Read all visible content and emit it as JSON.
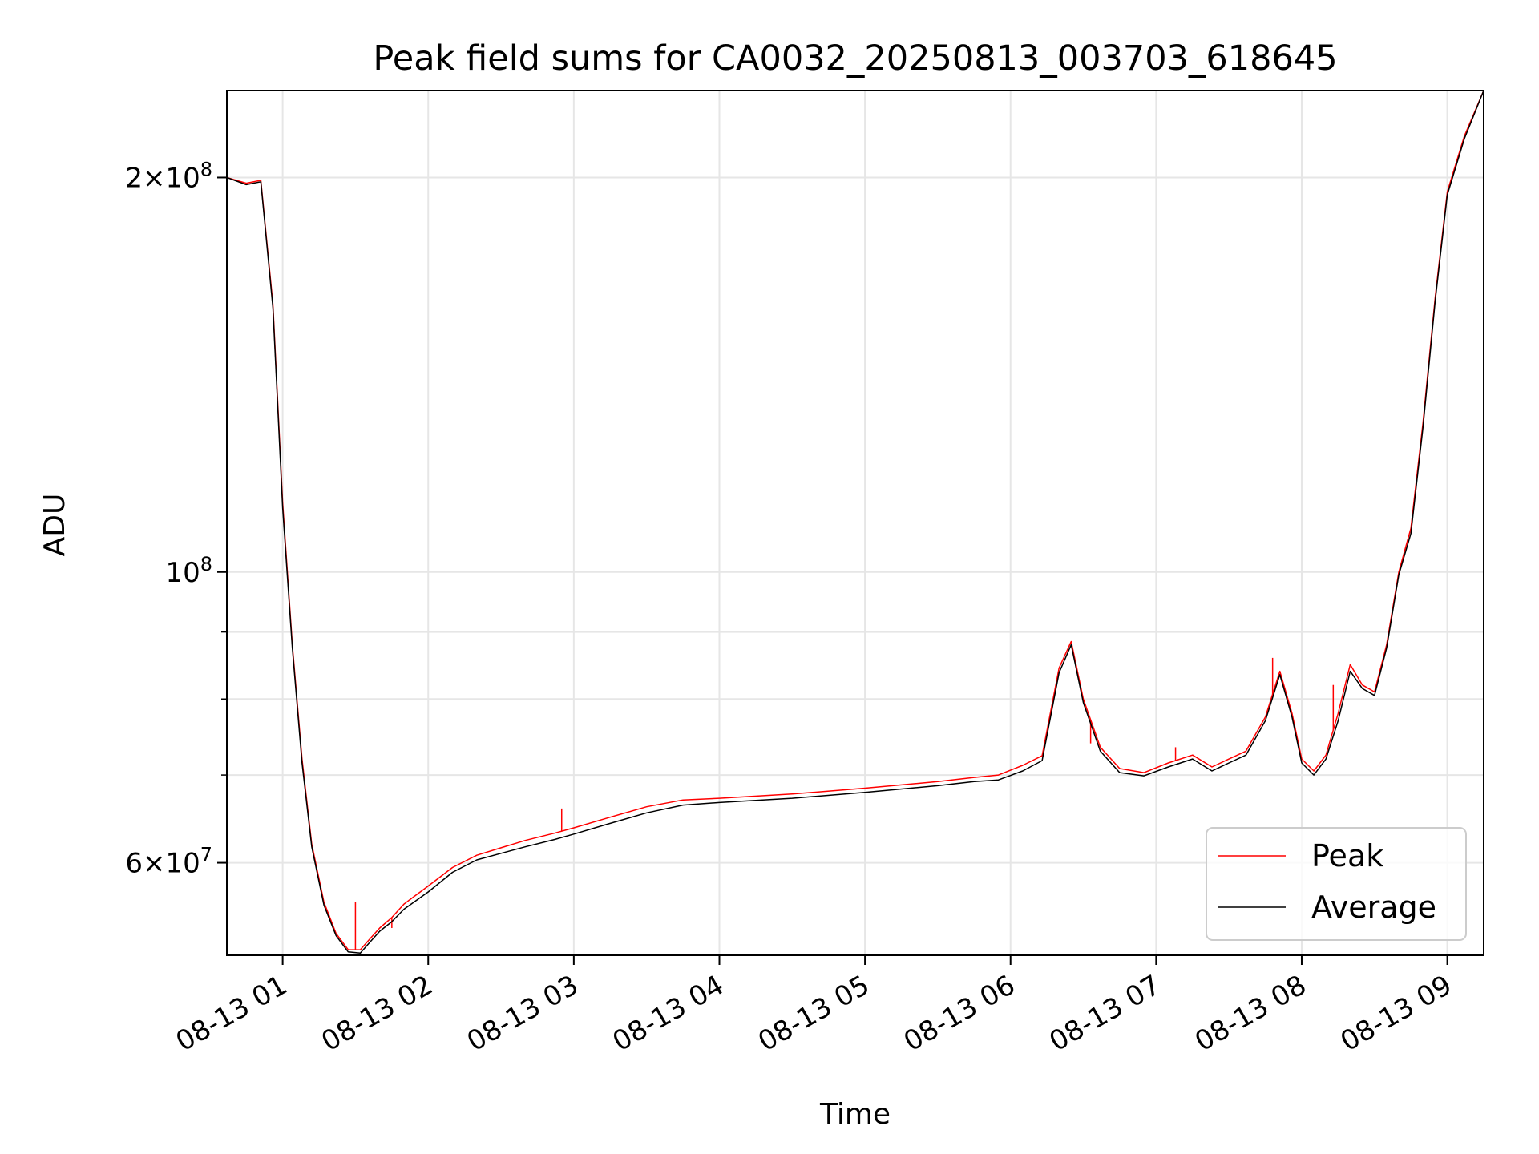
{
  "chart_data": {
    "type": "line",
    "title": "Peak field sums for CA0032_20250813_003703_618645",
    "xlabel": "Time",
    "ylabel": "ADU",
    "x_scale": "time",
    "y_scale": "log",
    "xlim": [
      "2025-08-13 00:37",
      "2025-08-13 09:15"
    ],
    "ylim": [
      51000000,
      233000000
    ],
    "x_tick_labels": [
      "08-13 01",
      "08-13 02",
      "08-13 03",
      "08-13 04",
      "08-13 05",
      "08-13 06",
      "08-13 07",
      "08-13 08",
      "08-13 09"
    ],
    "x_tick_values": [
      "2025-08-13 01:00",
      "2025-08-13 02:00",
      "2025-08-13 03:00",
      "2025-08-13 04:00",
      "2025-08-13 05:00",
      "2025-08-13 06:00",
      "2025-08-13 07:00",
      "2025-08-13 08:00",
      "2025-08-13 09:00"
    ],
    "y_ticks": [
      {
        "value": 60000000,
        "mantissa": "6",
        "exponent": "7"
      },
      {
        "value": 100000000,
        "mantissa": "",
        "exponent": "8"
      },
      {
        "value": 200000000,
        "mantissa": "2",
        "exponent": "8"
      }
    ],
    "y_minor_ticks": [
      70000000,
      80000000,
      90000000
    ],
    "grid": true,
    "legend_position": "lower-right",
    "series": [
      {
        "name": "Peak",
        "color": "#ff0000",
        "x": [
          "2025-08-13 00:37",
          "2025-08-13 00:45",
          "2025-08-13 00:51",
          "2025-08-13 00:56",
          "2025-08-13 01:00",
          "2025-08-13 01:04",
          "2025-08-13 01:08",
          "2025-08-13 01:12",
          "2025-08-13 01:17",
          "2025-08-13 01:22",
          "2025-08-13 01:27",
          "2025-08-13 01:32",
          "2025-08-13 01:36",
          "2025-08-13 01:40",
          "2025-08-13 01:45",
          "2025-08-13 01:50",
          "2025-08-13 02:00",
          "2025-08-13 02:10",
          "2025-08-13 02:20",
          "2025-08-13 02:30",
          "2025-08-13 02:40",
          "2025-08-13 02:52",
          "2025-08-13 03:00",
          "2025-08-13 03:15",
          "2025-08-13 03:30",
          "2025-08-13 03:45",
          "2025-08-13 04:00",
          "2025-08-13 04:30",
          "2025-08-13 05:00",
          "2025-08-13 05:30",
          "2025-08-13 05:45",
          "2025-08-13 05:55",
          "2025-08-13 06:05",
          "2025-08-13 06:13",
          "2025-08-13 06:20",
          "2025-08-13 06:25",
          "2025-08-13 06:30",
          "2025-08-13 06:37",
          "2025-08-13 06:45",
          "2025-08-13 06:55",
          "2025-08-13 07:05",
          "2025-08-13 07:15",
          "2025-08-13 07:23",
          "2025-08-13 07:30",
          "2025-08-13 07:37",
          "2025-08-13 07:45",
          "2025-08-13 07:51",
          "2025-08-13 07:56",
          "2025-08-13 08:00",
          "2025-08-13 08:05",
          "2025-08-13 08:10",
          "2025-08-13 08:15",
          "2025-08-13 08:20",
          "2025-08-13 08:25",
          "2025-08-13 08:30",
          "2025-08-13 08:35",
          "2025-08-13 08:40",
          "2025-08-13 08:45",
          "2025-08-13 08:50",
          "2025-08-13 08:55",
          "2025-08-13 09:00",
          "2025-08-13 09:07",
          "2025-08-13 09:15"
        ],
        "values": [
          200000000,
          198000000,
          199000000,
          160000000,
          113000000,
          88000000,
          72000000,
          62000000,
          56000000,
          53000000,
          51500000,
          51500000,
          52500000,
          53500000,
          54500000,
          55800000,
          57600000,
          59500000,
          60800000,
          61600000,
          62400000,
          63200000,
          63800000,
          65000000,
          66200000,
          67000000,
          67200000,
          67700000,
          68400000,
          69200000,
          69700000,
          70000000,
          71200000,
          72400000,
          84500000,
          88500000,
          80000000,
          73500000,
          70800000,
          70300000,
          71500000,
          72500000,
          71000000,
          72000000,
          73000000,
          77500000,
          84000000,
          78000000,
          72000000,
          70500000,
          72500000,
          78000000,
          85000000,
          82000000,
          81000000,
          88000000,
          100000000,
          108000000,
          130000000,
          162000000,
          195000000,
          215000000,
          233000000
        ],
        "spikes": [
          {
            "x": "2025-08-13 01:30",
            "value": 56000000
          },
          {
            "x": "2025-08-13 01:45",
            "value": 53500000
          },
          {
            "x": "2025-08-13 02:55",
            "value": 66000000
          },
          {
            "x": "2025-08-13 06:33",
            "value": 74000000
          },
          {
            "x": "2025-08-13 07:08",
            "value": 73500000
          },
          {
            "x": "2025-08-13 07:48",
            "value": 86000000
          },
          {
            "x": "2025-08-13 08:13",
            "value": 82000000
          }
        ]
      },
      {
        "name": "Average",
        "color": "#000000",
        "x": [
          "2025-08-13 00:37",
          "2025-08-13 00:45",
          "2025-08-13 00:51",
          "2025-08-13 00:56",
          "2025-08-13 01:00",
          "2025-08-13 01:04",
          "2025-08-13 01:08",
          "2025-08-13 01:12",
          "2025-08-13 01:17",
          "2025-08-13 01:22",
          "2025-08-13 01:27",
          "2025-08-13 01:32",
          "2025-08-13 01:36",
          "2025-08-13 01:40",
          "2025-08-13 01:45",
          "2025-08-13 01:50",
          "2025-08-13 02:00",
          "2025-08-13 02:10",
          "2025-08-13 02:20",
          "2025-08-13 02:30",
          "2025-08-13 02:40",
          "2025-08-13 02:52",
          "2025-08-13 03:00",
          "2025-08-13 03:15",
          "2025-08-13 03:30",
          "2025-08-13 03:45",
          "2025-08-13 04:00",
          "2025-08-13 04:30",
          "2025-08-13 05:00",
          "2025-08-13 05:30",
          "2025-08-13 05:45",
          "2025-08-13 05:55",
          "2025-08-13 06:05",
          "2025-08-13 06:13",
          "2025-08-13 06:20",
          "2025-08-13 06:25",
          "2025-08-13 06:30",
          "2025-08-13 06:37",
          "2025-08-13 06:45",
          "2025-08-13 06:55",
          "2025-08-13 07:05",
          "2025-08-13 07:15",
          "2025-08-13 07:23",
          "2025-08-13 07:30",
          "2025-08-13 07:37",
          "2025-08-13 07:45",
          "2025-08-13 07:51",
          "2025-08-13 07:56",
          "2025-08-13 08:00",
          "2025-08-13 08:05",
          "2025-08-13 08:10",
          "2025-08-13 08:15",
          "2025-08-13 08:20",
          "2025-08-13 08:25",
          "2025-08-13 08:30",
          "2025-08-13 08:35",
          "2025-08-13 08:40",
          "2025-08-13 08:45",
          "2025-08-13 08:50",
          "2025-08-13 08:55",
          "2025-08-13 09:00",
          "2025-08-13 09:07",
          "2025-08-13 09:15"
        ],
        "values": [
          200000000,
          197500000,
          198500000,
          159000000,
          112000000,
          87500000,
          71500000,
          61700000,
          55700000,
          52800000,
          51300000,
          51200000,
          52200000,
          53200000,
          54100000,
          55300000,
          57000000,
          59000000,
          60300000,
          61000000,
          61700000,
          62500000,
          63100000,
          64300000,
          65500000,
          66400000,
          66700000,
          67200000,
          67900000,
          68700000,
          69200000,
          69400000,
          70500000,
          71800000,
          83800000,
          88000000,
          79500000,
          73000000,
          70300000,
          69900000,
          71000000,
          72000000,
          70500000,
          71500000,
          72500000,
          77000000,
          83500000,
          77500000,
          71500000,
          70000000,
          72000000,
          77000000,
          84000000,
          81500000,
          80500000,
          87500000,
          99500000,
          107000000,
          129000000,
          161000000,
          194000000,
          214000000,
          233000000
        ]
      }
    ]
  }
}
